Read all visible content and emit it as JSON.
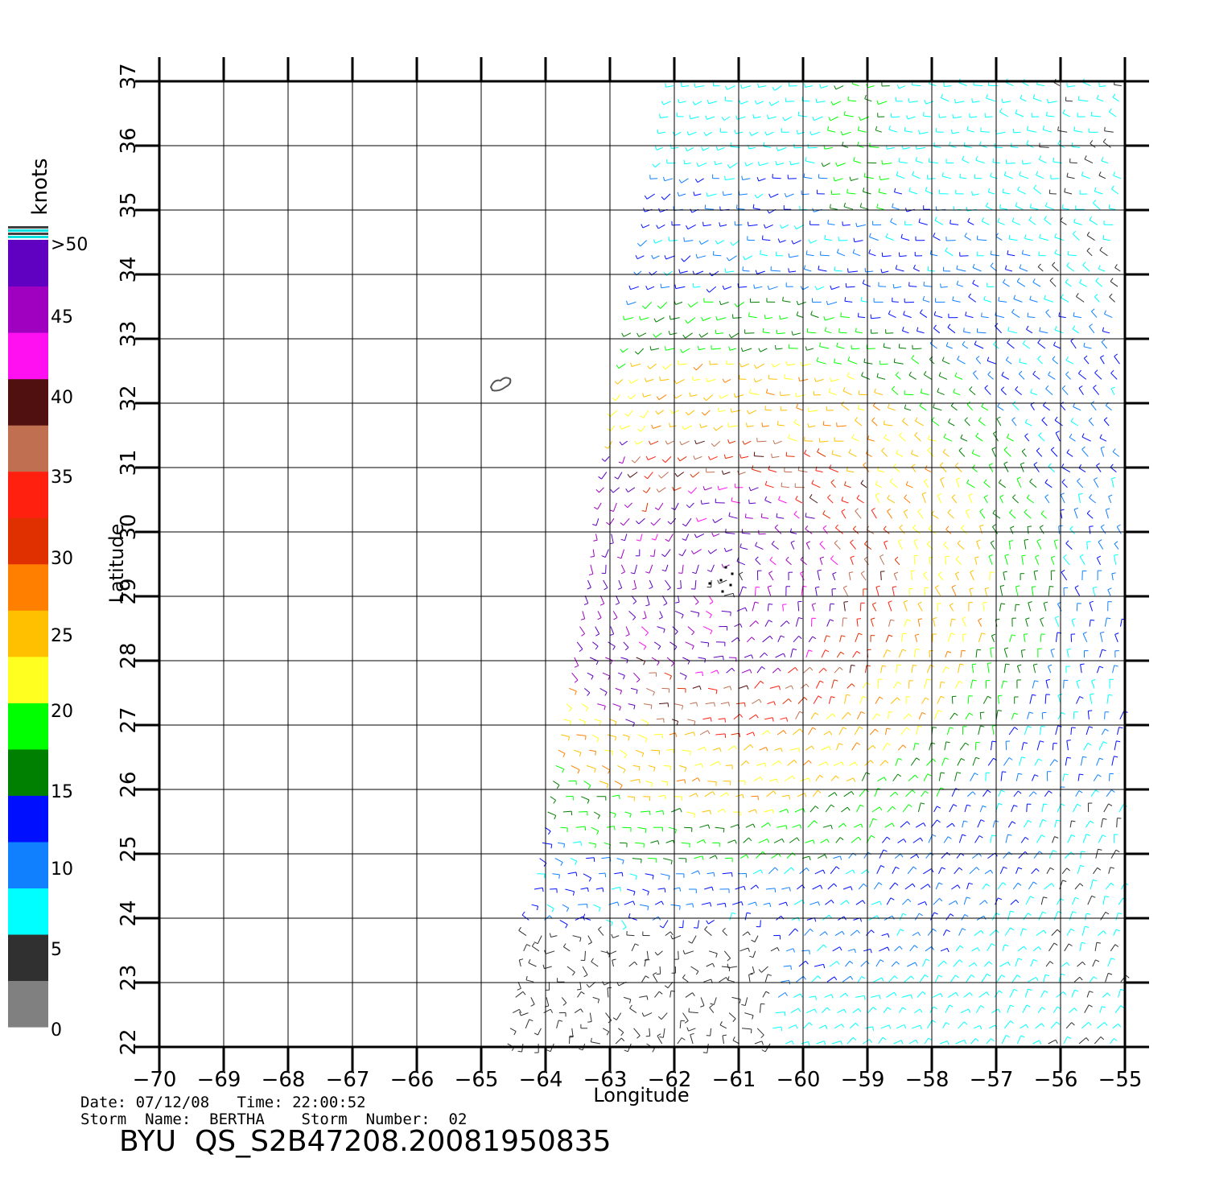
{
  "map": {
    "lon_range": [
      -70,
      -55
    ],
    "lat_range": [
      22,
      37
    ],
    "lon_ticks": [
      "−70",
      "−69",
      "−68",
      "−67",
      "−66",
      "−65",
      "−64",
      "−63",
      "−62",
      "−61",
      "−60",
      "−59",
      "−58",
      "−57",
      "−56",
      "−55"
    ],
    "lat_ticks": [
      "22",
      "23",
      "24",
      "25",
      "26",
      "27",
      "28",
      "29",
      "30",
      "31",
      "32",
      "33",
      "34",
      "35",
      "36",
      "37"
    ],
    "xlabel": "Longitude",
    "ylabel": "Latitude",
    "grid": true,
    "storm_center_lonlat": [
      -61.2,
      29.2
    ],
    "island_lonlat": [
      -64.7,
      32.3
    ]
  },
  "colorbar": {
    "unit_label": "knots",
    "tick_labels": [
      ">50",
      "45",
      "40",
      "35",
      "30",
      "25",
      "20",
      "15",
      "10",
      "5",
      "0"
    ],
    "band_colors": [
      "#808080",
      "#303030",
      "#00ffff",
      "#1080ff",
      "#0010ff",
      "#008000",
      "#00ff00",
      "#ffff20",
      "#ffc000",
      "#ff8000",
      "#e03000",
      "#ff2010",
      "#c07050",
      "#501010",
      "#ff10f0",
      "#a000c0",
      "#6000c0"
    ]
  },
  "footer": {
    "date_line": "Date: 07/12/08   Time: 22:00:52",
    "storm_line": "Storm  Name:  BERTHA    Storm  Number:  02",
    "product": "BYU  QS_S2B47208.20081950835"
  }
}
